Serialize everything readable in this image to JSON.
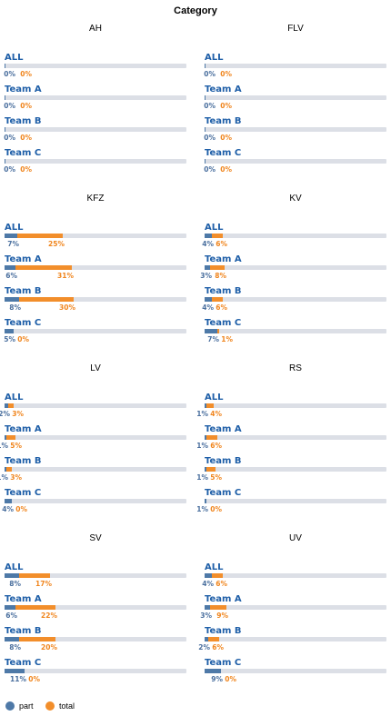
{
  "chart_data": {
    "type": "bar",
    "title": "Category",
    "legend": {
      "placement": "bottom-left",
      "entries": [
        {
          "name": "part",
          "color": "#4e79a7"
        },
        {
          "name": "total",
          "color": "#f28e2b"
        }
      ]
    },
    "colors": {
      "track": "#dcdfe6",
      "part": "#4e79a7",
      "total": "#f28e2b",
      "team_label": "#1f5fa8"
    },
    "xlim": [
      0,
      100
    ],
    "panels": [
      {
        "title": "AH",
        "rows": [
          {
            "label": "ALL",
            "part": 0,
            "total": 0,
            "part_text": "0%",
            "total_text": "0%"
          },
          {
            "label": "Team A",
            "part": 0,
            "total": 0,
            "part_text": "0%",
            "total_text": "0%"
          },
          {
            "label": "Team B",
            "part": 0,
            "total": 0,
            "part_text": "0%",
            "total_text": "0%"
          },
          {
            "label": "Team C",
            "part": 0,
            "total": 0,
            "part_text": "0%",
            "total_text": "0%"
          }
        ]
      },
      {
        "title": "FLV",
        "rows": [
          {
            "label": "ALL",
            "part": 0,
            "total": 0,
            "part_text": "0%",
            "total_text": "0%"
          },
          {
            "label": "Team A",
            "part": 0,
            "total": 0,
            "part_text": "0%",
            "total_text": "0%"
          },
          {
            "label": "Team B",
            "part": 0,
            "total": 0,
            "part_text": "0%",
            "total_text": "0%"
          },
          {
            "label": "Team C",
            "part": 0,
            "total": 0,
            "part_text": "0%",
            "total_text": "0%"
          }
        ]
      },
      {
        "title": "KFZ",
        "rows": [
          {
            "label": "ALL",
            "part": 7,
            "total": 25,
            "part_text": "7%",
            "total_text": "25%"
          },
          {
            "label": "Team A",
            "part": 6,
            "total": 31,
            "part_text": "6%",
            "total_text": "31%"
          },
          {
            "label": "Team B",
            "part": 8,
            "total": 30,
            "part_text": "8%",
            "total_text": "30%"
          },
          {
            "label": "Team C",
            "part": 5,
            "total": 0,
            "part_text": "5%",
            "total_text": "0%"
          }
        ]
      },
      {
        "title": "KV",
        "rows": [
          {
            "label": "ALL",
            "part": 4,
            "total": 6,
            "part_text": "4%",
            "total_text": "6%"
          },
          {
            "label": "Team A",
            "part": 3,
            "total": 8,
            "part_text": "3%",
            "total_text": "8%"
          },
          {
            "label": "Team B",
            "part": 4,
            "total": 6,
            "part_text": "4%",
            "total_text": "6%"
          },
          {
            "label": "Team C",
            "part": 7,
            "total": 1,
            "part_text": "7%",
            "total_text": "1%"
          }
        ]
      },
      {
        "title": "LV",
        "rows": [
          {
            "label": "ALL",
            "part": 2,
            "total": 3,
            "part_text": "2%",
            "total_text": "3%"
          },
          {
            "label": "Team A",
            "part": 1,
            "total": 5,
            "part_text": "1%",
            "total_text": "5%"
          },
          {
            "label": "Team B",
            "part": 1,
            "total": 3,
            "part_text": "1%",
            "total_text": "3%"
          },
          {
            "label": "Team C",
            "part": 4,
            "total": 0,
            "part_text": "4%",
            "total_text": "0%"
          }
        ]
      },
      {
        "title": "RS",
        "rows": [
          {
            "label": "ALL",
            "part": 1,
            "total": 4,
            "part_text": "1%",
            "total_text": "4%"
          },
          {
            "label": "Team A",
            "part": 1,
            "total": 6,
            "part_text": "1%",
            "total_text": "6%"
          },
          {
            "label": "Team B",
            "part": 1,
            "total": 5,
            "part_text": "1%",
            "total_text": "5%"
          },
          {
            "label": "Team C",
            "part": 1,
            "total": 0,
            "part_text": "1%",
            "total_text": "0%"
          }
        ]
      },
      {
        "title": "SV",
        "rows": [
          {
            "label": "ALL",
            "part": 8,
            "total": 17,
            "part_text": "8%",
            "total_text": "17%"
          },
          {
            "label": "Team A",
            "part": 6,
            "total": 22,
            "part_text": "6%",
            "total_text": "22%"
          },
          {
            "label": "Team B",
            "part": 8,
            "total": 20,
            "part_text": "8%",
            "total_text": "20%"
          },
          {
            "label": "Team C",
            "part": 11,
            "total": 0,
            "part_text": "11%",
            "total_text": "0%"
          }
        ]
      },
      {
        "title": "UV",
        "rows": [
          {
            "label": "ALL",
            "part": 4,
            "total": 6,
            "part_text": "4%",
            "total_text": "6%"
          },
          {
            "label": "Team A",
            "part": 3,
            "total": 9,
            "part_text": "3%",
            "total_text": "9%"
          },
          {
            "label": "Team B",
            "part": 2,
            "total": 6,
            "part_text": "2%",
            "total_text": "6%"
          },
          {
            "label": "Team C",
            "part": 9,
            "total": 0,
            "part_text": "9%",
            "total_text": "0%"
          }
        ]
      }
    ]
  }
}
